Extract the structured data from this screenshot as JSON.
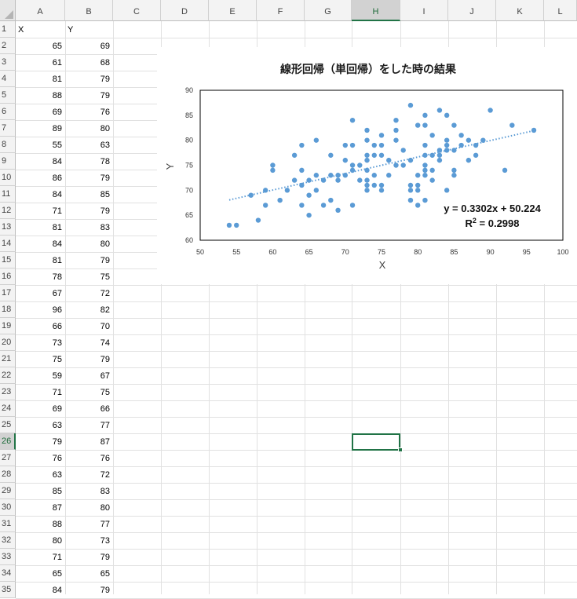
{
  "columns": [
    "A",
    "B",
    "C",
    "D",
    "E",
    "F",
    "G",
    "H",
    "I",
    "J",
    "K",
    "L"
  ],
  "selected_column": "H",
  "selected_row": 26,
  "header_row": {
    "A": "X",
    "B": "Y"
  },
  "rows": [
    [
      65,
      69
    ],
    [
      61,
      68
    ],
    [
      81,
      79
    ],
    [
      88,
      79
    ],
    [
      69,
      76
    ],
    [
      89,
      80
    ],
    [
      55,
      63
    ],
    [
      84,
      78
    ],
    [
      86,
      79
    ],
    [
      84,
      85
    ],
    [
      71,
      79
    ],
    [
      81,
      83
    ],
    [
      84,
      80
    ],
    [
      81,
      79
    ],
    [
      78,
      75
    ],
    [
      67,
      72
    ],
    [
      96,
      82
    ],
    [
      66,
      70
    ],
    [
      73,
      74
    ],
    [
      75,
      79
    ],
    [
      59,
      67
    ],
    [
      71,
      75
    ],
    [
      69,
      66
    ],
    [
      63,
      77
    ],
    [
      79,
      87
    ],
    [
      76,
      76
    ],
    [
      63,
      72
    ],
    [
      85,
      83
    ],
    [
      87,
      80
    ],
    [
      88,
      77
    ],
    [
      80,
      73
    ],
    [
      71,
      79
    ],
    [
      65,
      65
    ],
    [
      84,
      79
    ]
  ],
  "chart_data": {
    "type": "scatter",
    "title": "線形回帰（単回帰）をした時の結果",
    "xlabel": "X",
    "ylabel": "Y",
    "xlim": [
      50,
      100
    ],
    "ylim": [
      60,
      90
    ],
    "xticks": [
      50,
      55,
      60,
      65,
      70,
      75,
      80,
      85,
      90,
      95,
      100
    ],
    "yticks": [
      60,
      65,
      70,
      75,
      80,
      85,
      90
    ],
    "grid": false,
    "marker_color": "#5b9bd5",
    "trendline": {
      "slope": 0.3302,
      "intercept": 50.224,
      "x_range": [
        54,
        96
      ],
      "style": "dotted"
    },
    "equation_text": "y = 0.3302x + 50.224",
    "r2_prefix": "R",
    "r2_sup": "2",
    "r2_value": " = 0.2998",
    "points": [
      [
        54,
        63
      ],
      [
        55,
        63
      ],
      [
        57,
        69
      ],
      [
        58,
        64
      ],
      [
        59,
        67
      ],
      [
        59,
        70
      ],
      [
        60,
        74
      ],
      [
        60,
        75
      ],
      [
        61,
        68
      ],
      [
        62,
        70
      ],
      [
        63,
        72
      ],
      [
        63,
        77
      ],
      [
        64,
        71
      ],
      [
        64,
        67
      ],
      [
        64,
        74
      ],
      [
        64,
        79
      ],
      [
        65,
        65
      ],
      [
        65,
        69
      ],
      [
        65,
        72
      ],
      [
        66,
        70
      ],
      [
        66,
        73
      ],
      [
        66,
        80
      ],
      [
        67,
        72
      ],
      [
        67,
        67
      ],
      [
        68,
        68
      ],
      [
        68,
        73
      ],
      [
        68,
        77
      ],
      [
        69,
        72
      ],
      [
        69,
        66
      ],
      [
        69,
        73
      ],
      [
        70,
        73
      ],
      [
        70,
        79
      ],
      [
        70,
        76
      ],
      [
        71,
        67
      ],
      [
        71,
        74
      ],
      [
        71,
        75
      ],
      [
        71,
        79
      ],
      [
        71,
        84
      ],
      [
        72,
        72
      ],
      [
        72,
        75
      ],
      [
        73,
        70
      ],
      [
        73,
        71
      ],
      [
        73,
        72
      ],
      [
        73,
        74
      ],
      [
        73,
        76
      ],
      [
        73,
        77
      ],
      [
        73,
        80
      ],
      [
        73,
        82
      ],
      [
        74,
        71
      ],
      [
        74,
        73
      ],
      [
        74,
        77
      ],
      [
        74,
        79
      ],
      [
        75,
        70
      ],
      [
        75,
        71
      ],
      [
        75,
        77
      ],
      [
        75,
        79
      ],
      [
        75,
        81
      ],
      [
        76,
        73
      ],
      [
        76,
        76
      ],
      [
        77,
        75
      ],
      [
        77,
        80
      ],
      [
        77,
        82
      ],
      [
        77,
        84
      ],
      [
        78,
        75
      ],
      [
        78,
        78
      ],
      [
        79,
        68
      ],
      [
        79,
        70
      ],
      [
        79,
        71
      ],
      [
        79,
        76
      ],
      [
        79,
        87
      ],
      [
        80,
        67
      ],
      [
        80,
        70
      ],
      [
        80,
        71
      ],
      [
        80,
        73
      ],
      [
        80,
        83
      ],
      [
        81,
        68
      ],
      [
        81,
        73
      ],
      [
        81,
        74
      ],
      [
        81,
        75
      ],
      [
        81,
        77
      ],
      [
        81,
        79
      ],
      [
        81,
        83
      ],
      [
        81,
        85
      ],
      [
        82,
        72
      ],
      [
        82,
        74
      ],
      [
        82,
        77
      ],
      [
        82,
        81
      ],
      [
        83,
        76
      ],
      [
        83,
        77
      ],
      [
        83,
        78
      ],
      [
        83,
        86
      ],
      [
        84,
        70
      ],
      [
        84,
        78
      ],
      [
        84,
        79
      ],
      [
        84,
        80
      ],
      [
        84,
        85
      ],
      [
        85,
        73
      ],
      [
        85,
        74
      ],
      [
        85,
        78
      ],
      [
        85,
        83
      ],
      [
        86,
        79
      ],
      [
        86,
        81
      ],
      [
        87,
        76
      ],
      [
        87,
        80
      ],
      [
        88,
        77
      ],
      [
        88,
        79
      ],
      [
        89,
        80
      ],
      [
        90,
        86
      ],
      [
        92,
        74
      ],
      [
        93,
        83
      ],
      [
        96,
        82
      ]
    ]
  }
}
